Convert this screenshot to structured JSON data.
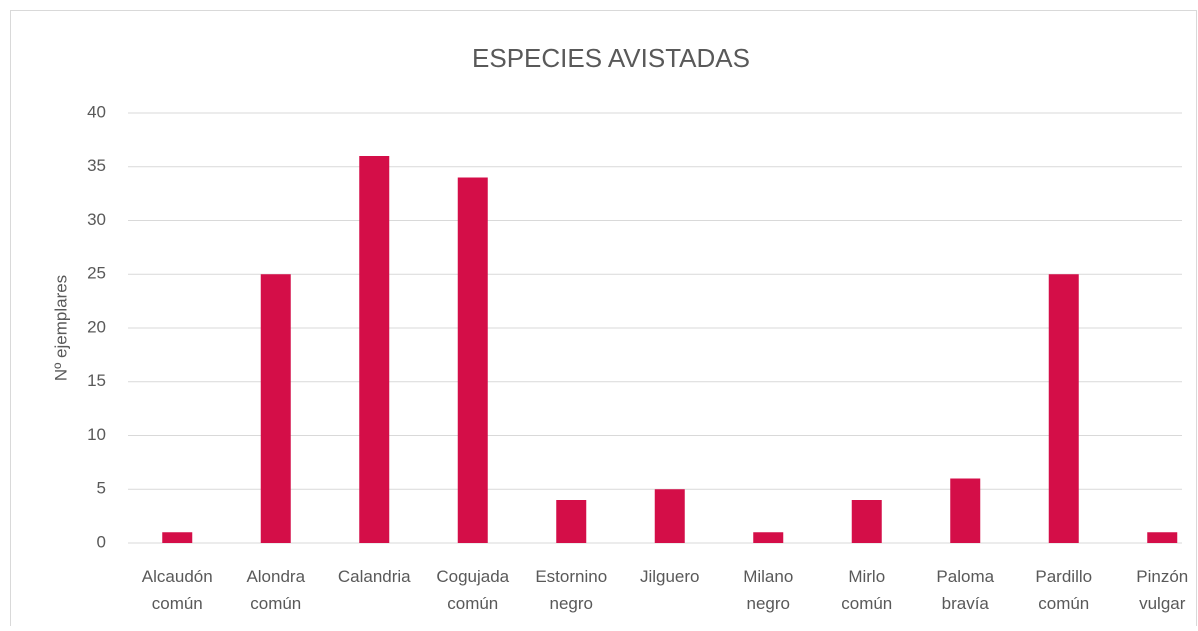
{
  "chart_data": {
    "type": "bar",
    "title": "ESPECIES AVISTADAS",
    "y_label": "Nº ejemplares",
    "categories": [
      "Alcaudón común",
      "Alondra común",
      "Calandria",
      "Cogujada común",
      "Estornino negro",
      "Jilguero",
      "Milano negro",
      "Mirlo común",
      "Paloma bravía",
      "Pardillo común",
      "Pinzón vulgar"
    ],
    "values": [
      1,
      25,
      36,
      34,
      4,
      5,
      1,
      4,
      6,
      25,
      1
    ],
    "color": "#d40e48",
    "ylim": [
      0,
      40
    ],
    "yticks": [
      0,
      5,
      10,
      15,
      20,
      25,
      30,
      35,
      40
    ],
    "grid": true
  }
}
